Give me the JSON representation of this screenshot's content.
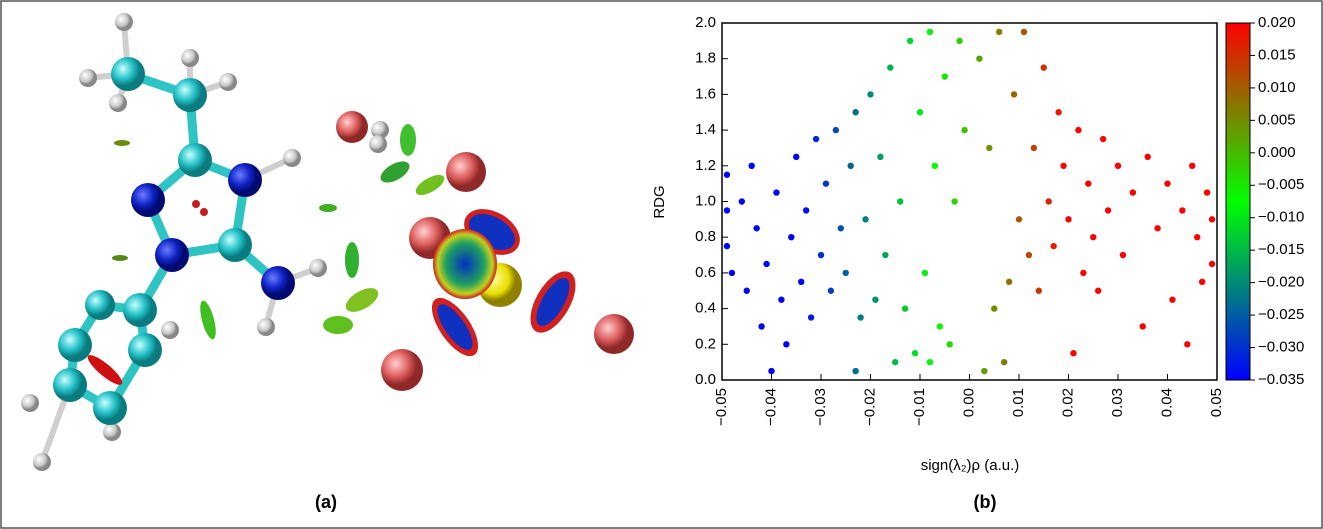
{
  "panel_labels": [
    "(a)",
    "(b)"
  ],
  "chart_data": {
    "type": "scatter",
    "x_label": "sign(λ₂)ρ (a.u.)",
    "y_label": "RDG",
    "xlim": [
      -0.05,
      0.05
    ],
    "xticks": [
      {
        "value": -0.05,
        "label": "−0.05"
      },
      {
        "value": -0.04,
        "label": "−0.04"
      },
      {
        "value": -0.03,
        "label": "−0.03"
      },
      {
        "value": -0.02,
        "label": "−0.02"
      },
      {
        "value": -0.01,
        "label": "−0.01"
      },
      {
        "value": 0,
        "label": "0.00"
      },
      0.01,
      0.02,
      0.03,
      0.04,
      0.05
    ],
    "ylim": [
      0,
      2
    ],
    "yticks": [
      {
        "value": 0,
        "label": "0.0"
      },
      0.2,
      0.4,
      0.6,
      0.8,
      {
        "value": 1,
        "label": "1.0"
      },
      1.2,
      1.4,
      1.6,
      1.8,
      {
        "value": 2,
        "label": "2.0"
      }
    ],
    "clim": [
      -0.035,
      0.02
    ],
    "cticks": [
      {
        "value": 0.02,
        "label": "0.020"
      },
      0.015,
      {
        "value": 0.01,
        "label": "0.010"
      },
      0.005,
      {
        "value": 0,
        "label": "0.000"
      },
      {
        "value": -0.005,
        "label": "−0.005"
      },
      {
        "value": -0.01,
        "label": "−0.010"
      },
      {
        "value": -0.015,
        "label": "−0.015"
      },
      {
        "value": -0.02,
        "label": "−0.020"
      },
      {
        "value": -0.025,
        "label": "−0.025"
      },
      {
        "value": -0.03,
        "label": "−0.030"
      },
      {
        "value": -0.035,
        "label": "−0.035"
      }
    ],
    "colormap": [
      "#0000ff",
      "#00ff00",
      "#ff0000"
    ],
    "x": [
      -0.049,
      -0.049,
      -0.049,
      -0.048,
      -0.046,
      -0.045,
      -0.044,
      -0.043,
      -0.042,
      -0.041,
      -0.04,
      -0.039,
      -0.038,
      -0.037,
      -0.036,
      -0.035,
      -0.034,
      -0.033,
      -0.032,
      -0.031,
      -0.03,
      -0.029,
      -0.028,
      -0.027,
      -0.026,
      -0.025,
      -0.024,
      -0.023,
      -0.023,
      -0.022,
      -0.021,
      -0.02,
      -0.019,
      -0.018,
      -0.017,
      -0.016,
      -0.015,
      -0.014,
      -0.013,
      -0.012,
      -0.011,
      -0.01,
      -0.009,
      -0.008,
      -0.008,
      -0.007,
      -0.006,
      -0.005,
      -0.004,
      -0.003,
      -0.002,
      -0.001,
      0.002,
      0.003,
      0.004,
      0.005,
      0.006,
      0.007,
      0.008,
      0.009,
      0.01,
      0.011,
      0.012,
      0.013,
      0.014,
      0.015,
      0.016,
      0.017,
      0.018,
      0.019,
      0.02,
      0.021,
      0.022,
      0.023,
      0.024,
      0.025,
      0.026,
      0.027,
      0.028,
      0.03,
      0.031,
      0.033,
      0.035,
      0.036,
      0.038,
      0.04,
      0.041,
      0.043,
      0.044,
      0.045,
      0.046,
      0.047,
      0.048,
      0.049,
      0.049
    ],
    "y": [
      1.15,
      0.95,
      0.75,
      0.6,
      1.0,
      0.5,
      1.2,
      0.85,
      0.3,
      0.65,
      0.05,
      1.05,
      0.45,
      0.2,
      0.8,
      1.25,
      0.55,
      0.95,
      0.35,
      1.35,
      0.7,
      1.1,
      0.5,
      1.4,
      0.85,
      0.6,
      1.2,
      0.05,
      1.5,
      0.35,
      0.9,
      1.6,
      0.45,
      1.25,
      0.7,
      1.75,
      0.1,
      1.0,
      0.4,
      1.9,
      0.15,
      1.5,
      0.6,
      0.1,
      1.95,
      1.2,
      0.3,
      1.7,
      0.2,
      1.0,
      1.9,
      1.4,
      1.8,
      0.05,
      1.3,
      0.4,
      1.95,
      0.1,
      0.55,
      1.6,
      0.9,
      1.95,
      0.7,
      1.3,
      0.5,
      1.75,
      1.0,
      0.75,
      1.5,
      1.2,
      0.9,
      0.15,
      1.4,
      0.6,
      1.1,
      0.8,
      0.5,
      1.35,
      0.95,
      1.2,
      0.7,
      1.05,
      0.3,
      1.25,
      0.85,
      1.1,
      0.45,
      0.95,
      0.2,
      1.2,
      0.8,
      0.55,
      1.05,
      0.9,
      0.65
    ]
  }
}
